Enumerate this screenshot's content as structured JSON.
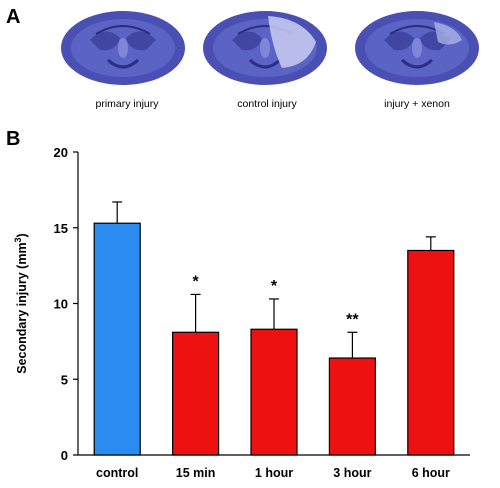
{
  "panel_a": {
    "letter": "A",
    "images": [
      {
        "caption": "primary injury"
      },
      {
        "caption": "control injury"
      },
      {
        "caption": "injury + xenon"
      }
    ]
  },
  "panel_b": {
    "letter": "B"
  },
  "chart_data": {
    "type": "bar",
    "title": "",
    "xlabel": "",
    "ylabel": "Secondary injury (mm",
    "ylabel_superscript": "3",
    "ylabel_suffix": ")",
    "ylim": [
      0,
      20
    ],
    "yticks": [
      0,
      5,
      10,
      15,
      20
    ],
    "grid": false,
    "categories": [
      "control",
      "15 min",
      "1 hour",
      "3 hour",
      "6 hour"
    ],
    "values": [
      15.3,
      8.1,
      8.3,
      6.4,
      13.5
    ],
    "errors": [
      1.4,
      2.5,
      2.0,
      1.7,
      0.9
    ],
    "significance": [
      "",
      "*",
      "*",
      "**",
      ""
    ],
    "colors": [
      "#2a8cf0",
      "#ee1111",
      "#ee1111",
      "#ee1111",
      "#ee1111"
    ]
  }
}
